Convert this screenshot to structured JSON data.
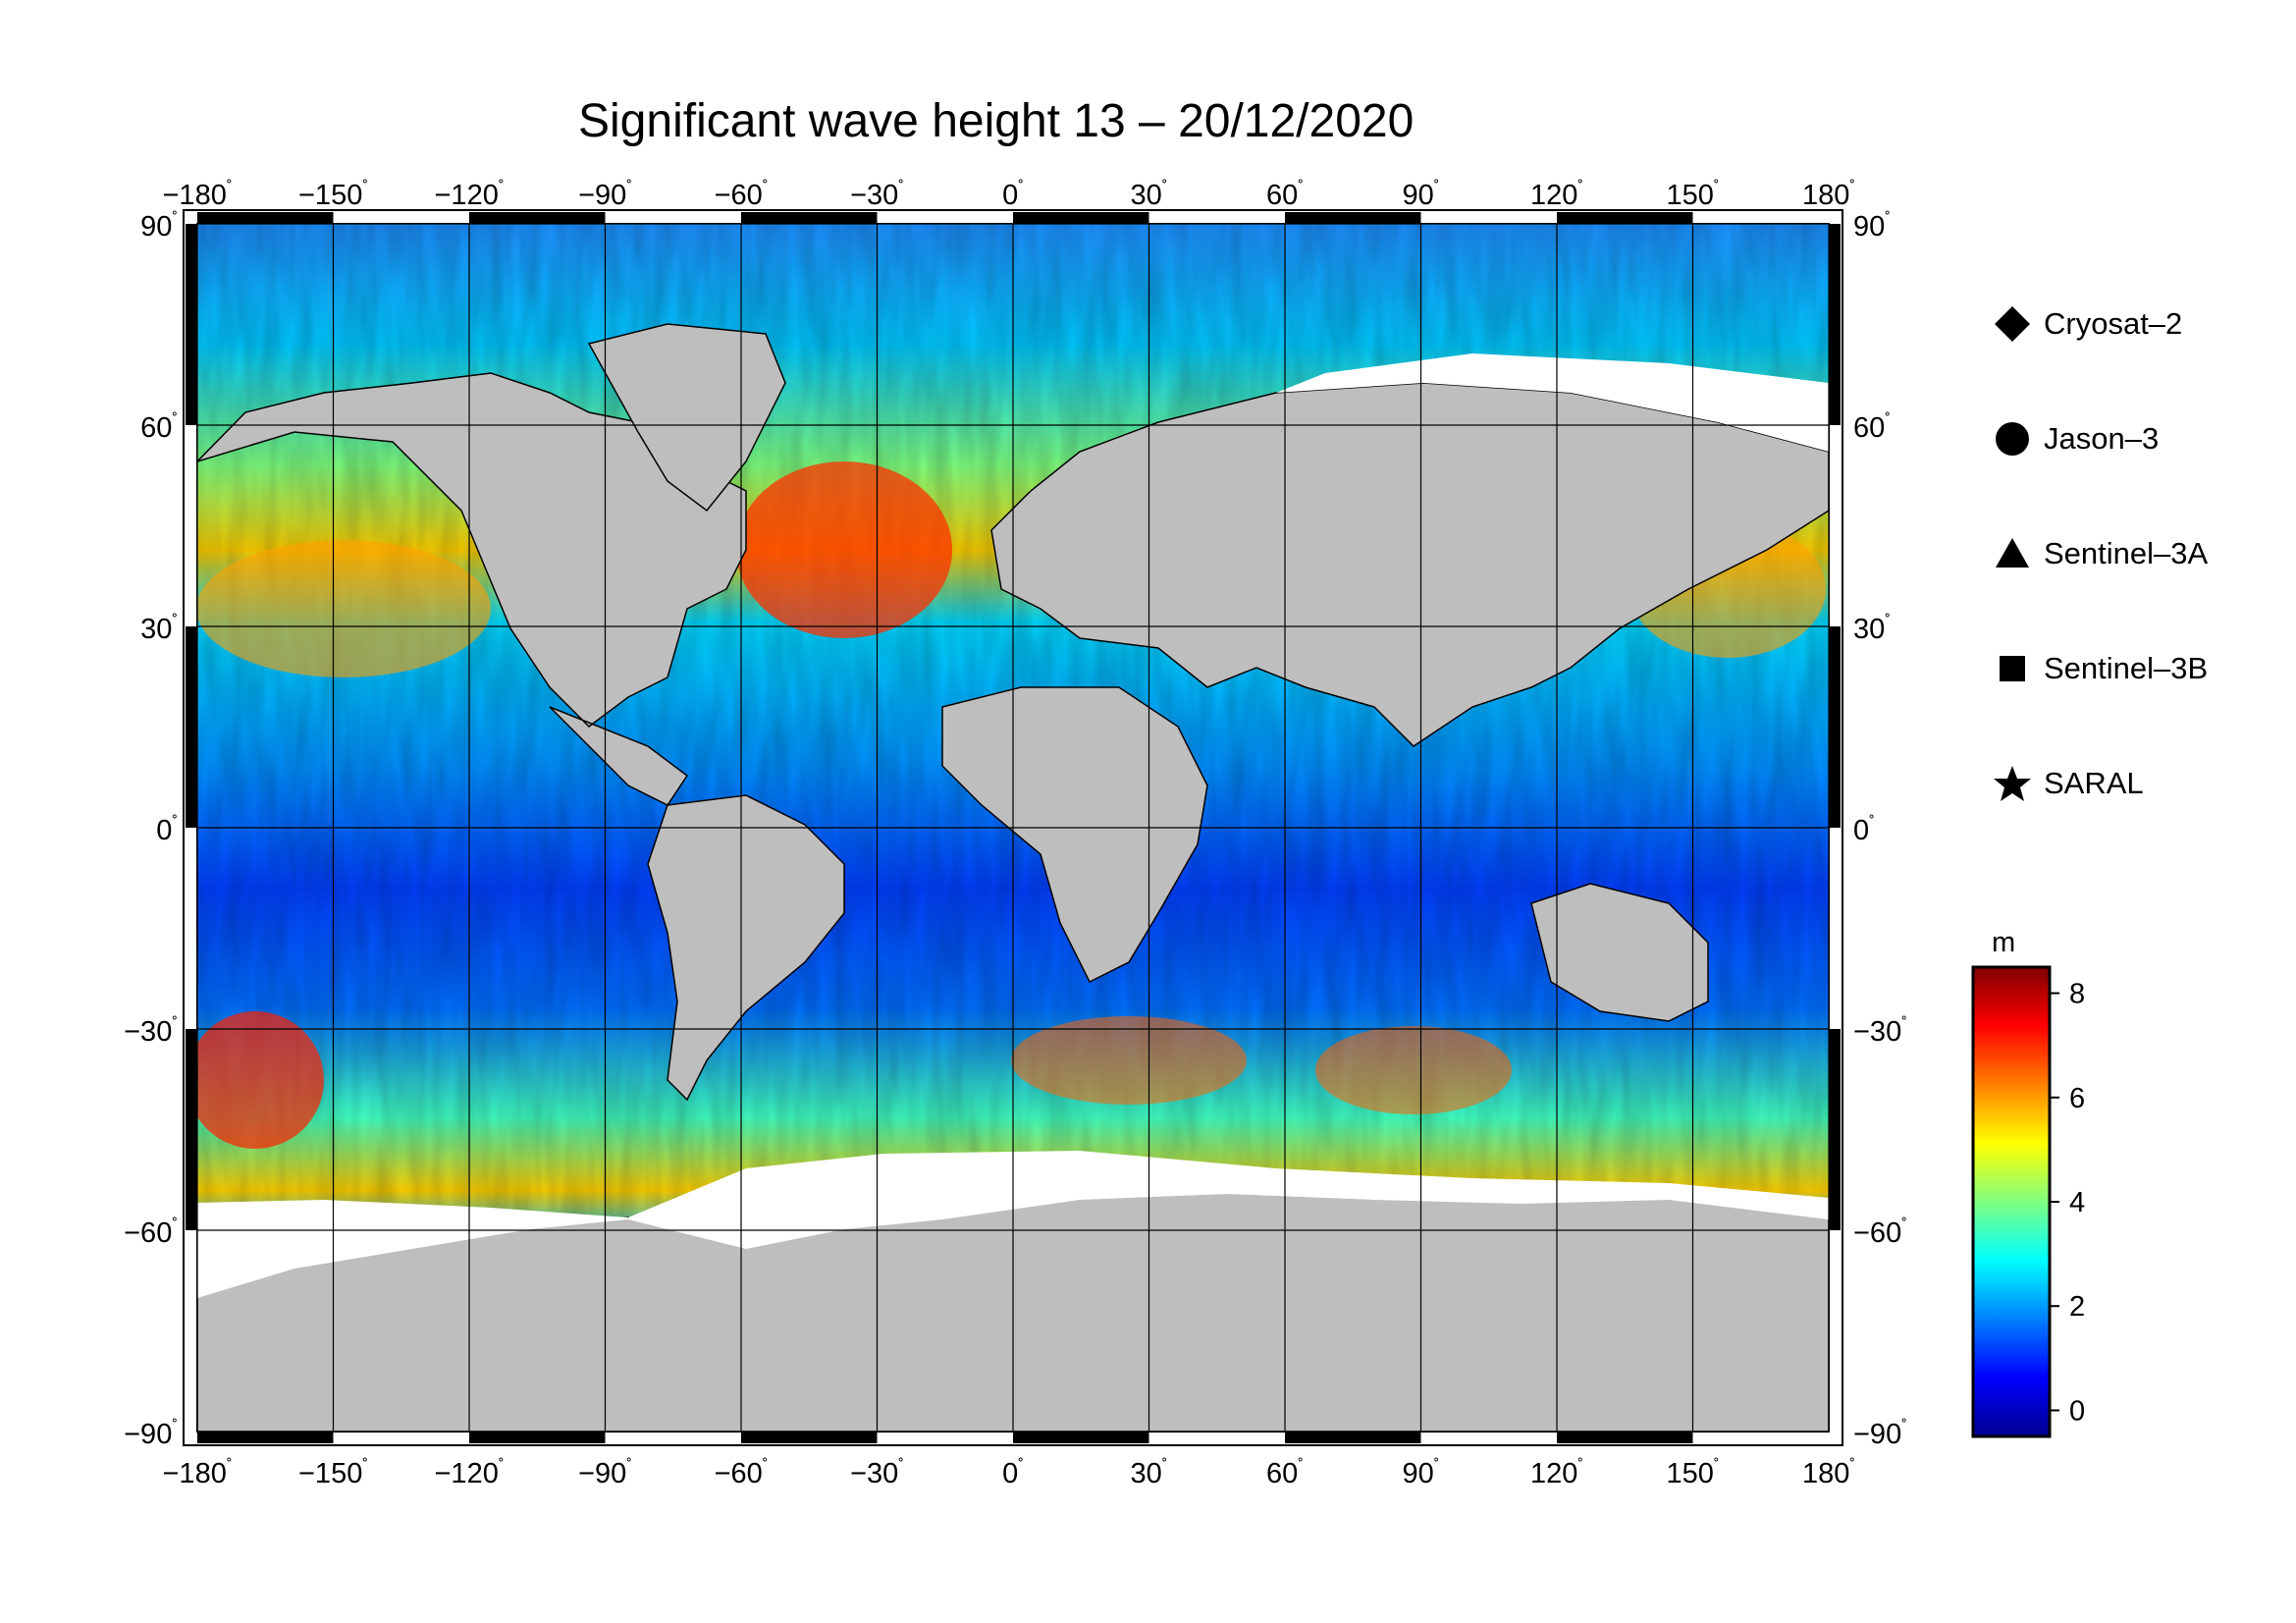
{
  "title": "Significant wave height 13 – 20/12/2020",
  "map": {
    "projection": "equirectangular",
    "longitude_range": [
      -180,
      180
    ],
    "latitude_range": [
      -90,
      90
    ],
    "longitude_ticks": [
      -180,
      -150,
      -120,
      -90,
      -60,
      -30,
      0,
      30,
      60,
      90,
      120,
      150,
      180
    ],
    "latitude_ticks": [
      90,
      60,
      30,
      0,
      -30,
      -60,
      -90
    ],
    "longitude_tick_labels": [
      "−180",
      "−150",
      "−120",
      "−90",
      "−60",
      "−30",
      "0",
      "30",
      "60",
      "90",
      "120",
      "150",
      "180"
    ],
    "latitude_tick_labels": [
      "90",
      "60",
      "30",
      "0",
      "−30",
      "−60",
      "−90"
    ],
    "degree_symbol": "˚",
    "land_color": "#bebebe",
    "ice_color": "#ffffff",
    "grid": true
  },
  "legend": {
    "placement": "right",
    "items": [
      {
        "symbol": "diamond",
        "label": "Cryosat–2"
      },
      {
        "symbol": "circle",
        "label": "Jason–3"
      },
      {
        "symbol": "triangle",
        "label": "Sentinel–3A"
      },
      {
        "symbol": "square",
        "label": "Sentinel–3B"
      },
      {
        "symbol": "star",
        "label": "SARAL"
      }
    ]
  },
  "colorbar": {
    "unit": "m",
    "range": [
      -0.5,
      8.5
    ],
    "ticks": [
      0,
      2,
      4,
      6,
      8
    ],
    "tick_labels": [
      "8",
      "6",
      "4",
      "2",
      "0"
    ],
    "colormap": "jet",
    "colors": [
      "#00008f",
      "#0000ff",
      "#0080ff",
      "#00ffff",
      "#80ff80",
      "#ffff00",
      "#ff8000",
      "#ff0000",
      "#800000"
    ]
  }
}
